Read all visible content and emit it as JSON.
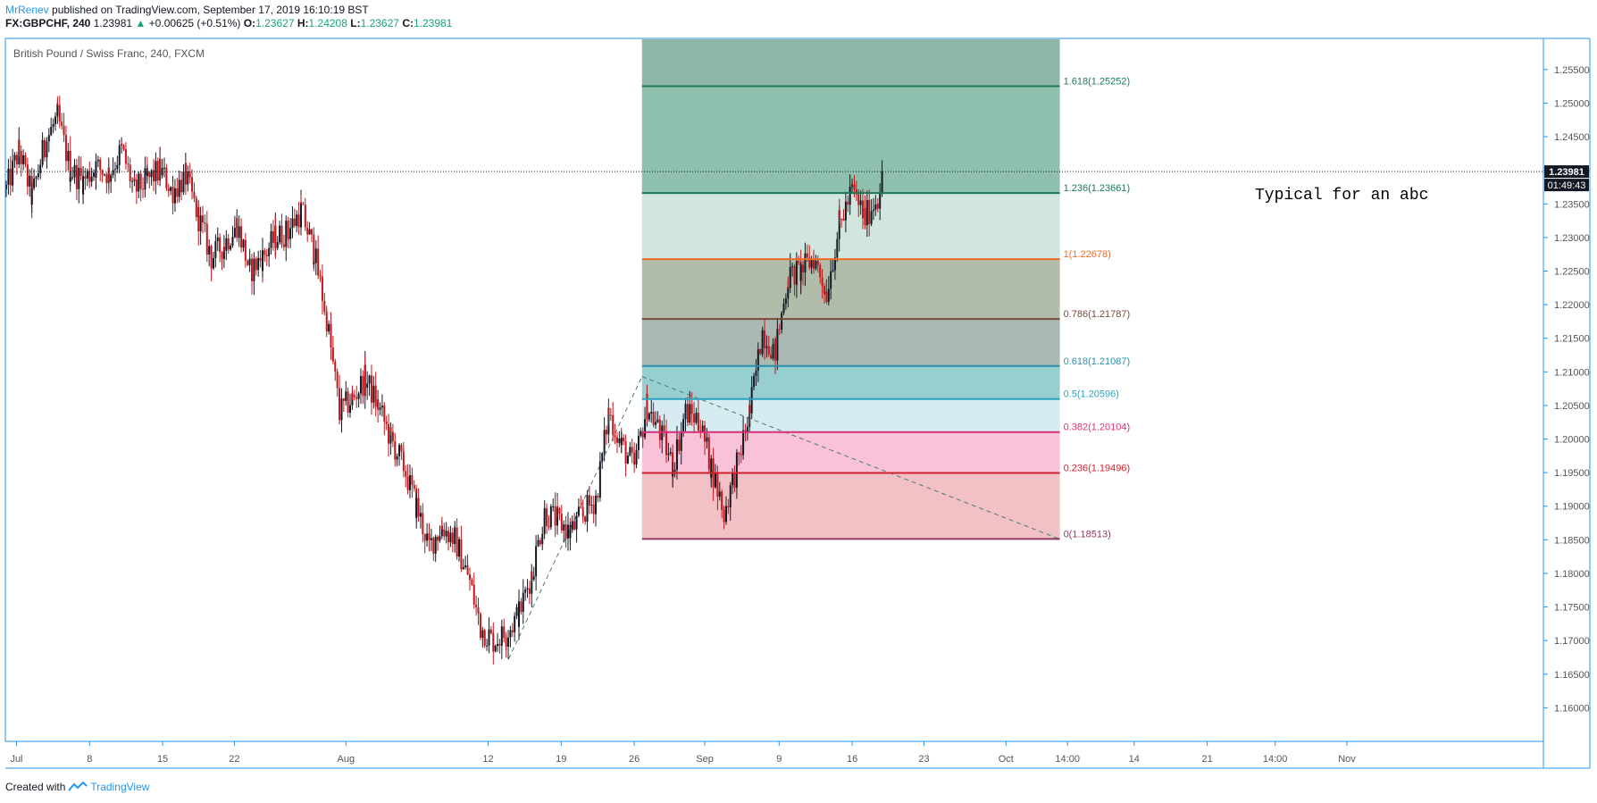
{
  "header": {
    "author": "MrRenev",
    "published": "published on TradingView.com, September 17, 2019 16:10:19 BST",
    "symbol": "FX:GBPCHF, 240",
    "last": "1.23981",
    "change_arrow": "▲",
    "change": "+0.00625 (+0.51%)",
    "o_label": "O:",
    "o_value": "1.23627",
    "h_label": "H:",
    "h_value": "1.24208",
    "l_label": "L:",
    "l_value": "1.23627",
    "c_label": "C:",
    "c_value": "1.23981"
  },
  "footer": {
    "created_with": "Created with",
    "brand": "TradingView"
  },
  "colors": {
    "up": "#131722",
    "down": "#c2161a",
    "axis": "#2196f3",
    "bg": "#ffffff"
  },
  "chart_data": {
    "type": "candlestick",
    "title": "British Pound / Swiss Franc, 240, FXCM",
    "annotation": "Typical for an abc",
    "y_range": [
      1.155,
      1.2595
    ],
    "y_ticks": [
      "1.16000",
      "1.16500",
      "1.17000",
      "1.17500",
      "1.18000",
      "1.18500",
      "1.19000",
      "1.19500",
      "1.20000",
      "1.20500",
      "1.21000",
      "1.21500",
      "1.22000",
      "1.22500",
      "1.23000",
      "1.23500",
      "1.24000",
      "1.24500",
      "1.25000",
      "1.25500"
    ],
    "x_ticks": [
      {
        "label": "Jul",
        "t": 0.8
      },
      {
        "label": "8",
        "t": 6.5
      },
      {
        "label": "15",
        "t": 12.2
      },
      {
        "label": "22",
        "t": 17.8
      },
      {
        "label": "Aug",
        "t": 26.5
      },
      {
        "label": "12",
        "t": 37.6
      },
      {
        "label": "19",
        "t": 43.3
      },
      {
        "label": "26",
        "t": 49.0
      },
      {
        "label": "Sep",
        "t": 54.5
      },
      {
        "label": "9",
        "t": 60.3
      },
      {
        "label": "16",
        "t": 66.0
      },
      {
        "label": "23",
        "t": 71.6
      },
      {
        "label": "Oct",
        "t": 78.0
      },
      {
        "label": "14:00",
        "t": 82.8
      },
      {
        "label": "14",
        "t": 88.0
      },
      {
        "label": "21",
        "t": 93.7
      },
      {
        "label": "14:00",
        "t": 99.0
      },
      {
        "label": "Nov",
        "t": 104.6
      }
    ],
    "price_line": {
      "value": 1.23981,
      "label": "1.23981",
      "countdown": "01:49:43"
    },
    "fib": {
      "t_start": 49.6,
      "t_end": 82.2,
      "levels": [
        {
          "ratio": "0",
          "price": 1.18513,
          "text": "0(1.18513)",
          "color": "#8e3b61",
          "fill": "#f2c1c6"
        },
        {
          "ratio": "0.236",
          "price": 1.19496,
          "text": "0.236(1.19496)",
          "color": "#d2222d",
          "fill": "#f9c2d8"
        },
        {
          "ratio": "0.382",
          "price": 1.20104,
          "text": "0.382(1.20104)",
          "color": "#d8307a",
          "fill": "#d7ecf1"
        },
        {
          "ratio": "0.5",
          "price": 1.20596,
          "text": "0.5(1.20596)",
          "color": "#29a3c2",
          "fill": "#97cfd0"
        },
        {
          "ratio": "0.618",
          "price": 1.21087,
          "text": "0.618(1.21087)",
          "color": "#2b8fab",
          "fill": "#a9b9b2"
        },
        {
          "ratio": "0.786",
          "price": 1.21787,
          "text": "0.786(1.21787)",
          "color": "#7a4a3c",
          "fill": "#b1bcab"
        },
        {
          "ratio": "1",
          "price": 1.22678,
          "text": "1(1.22678)",
          "color": "#ef6c27",
          "fill": "#d1e6de"
        },
        {
          "ratio": "1.236",
          "price": 1.23661,
          "text": "1.236(1.23661)",
          "color": "#1d7a55",
          "fill": "#8fbfad"
        },
        {
          "ratio": "1.618",
          "price": 1.25252,
          "text": "1.618(1.25252)",
          "color": "#1d7a55",
          "fill": "#8db6a6"
        }
      ],
      "top_price": 1.2595
    },
    "trendlines": [
      {
        "t1": 39.2,
        "p1": 1.1673,
        "t2": 49.6,
        "p2": 1.2093
      },
      {
        "t1": 49.6,
        "p1": 1.2093,
        "t2": 82.2,
        "p2": 1.1851
      }
    ],
    "anchors": [
      [
        0,
        1.2372
      ],
      [
        1,
        1.243
      ],
      [
        2,
        1.236
      ],
      [
        3,
        1.244
      ],
      [
        4,
        1.248
      ],
      [
        5,
        1.24
      ],
      [
        6,
        1.2385
      ],
      [
        7,
        1.2405
      ],
      [
        8,
        1.2395
      ],
      [
        9,
        1.243
      ],
      [
        10,
        1.237
      ],
      [
        11,
        1.2385
      ],
      [
        12,
        1.24
      ],
      [
        13,
        1.237
      ],
      [
        14,
        1.239
      ],
      [
        15,
        1.233
      ],
      [
        16,
        1.227
      ],
      [
        17,
        1.229
      ],
      [
        18,
        1.232
      ],
      [
        19,
        1.225
      ],
      [
        20,
        1.227
      ],
      [
        21,
        1.23
      ],
      [
        22,
        1.231
      ],
      [
        23,
        1.234
      ],
      [
        24,
        1.228
      ],
      [
        25,
        1.218
      ],
      [
        26,
        1.204
      ],
      [
        27,
        1.206
      ],
      [
        28,
        1.209
      ],
      [
        29,
        1.205
      ],
      [
        30,
        1.2
      ],
      [
        31,
        1.196
      ],
      [
        32,
        1.19
      ],
      [
        33,
        1.184
      ],
      [
        34,
        1.187
      ],
      [
        35,
        1.185
      ],
      [
        36,
        1.18
      ],
      [
        37,
        1.172
      ],
      [
        38,
        1.17
      ],
      [
        39,
        1.171
      ],
      [
        40,
        1.174
      ],
      [
        41,
        1.18
      ],
      [
        42,
        1.189
      ],
      [
        43,
        1.188
      ],
      [
        44,
        1.186
      ],
      [
        45,
        1.189
      ],
      [
        46,
        1.191
      ],
      [
        47,
        1.204
      ],
      [
        48,
        1.199
      ],
      [
        49,
        1.196
      ],
      [
        50,
        1.205
      ],
      [
        51,
        1.201
      ],
      [
        52,
        1.196
      ],
      [
        53,
        1.204
      ],
      [
        54,
        1.203
      ],
      [
        55,
        1.196
      ],
      [
        56,
        1.189
      ],
      [
        57,
        1.196
      ],
      [
        58,
        1.204
      ],
      [
        59,
        1.216
      ],
      [
        60,
        1.213
      ],
      [
        61,
        1.224
      ],
      [
        62,
        1.225
      ],
      [
        63,
        1.227
      ],
      [
        64,
        1.222
      ],
      [
        65,
        1.232
      ],
      [
        66,
        1.237
      ],
      [
        67,
        1.233
      ],
      [
        68,
        1.236
      ],
      [
        68.4,
        1.2398
      ]
    ]
  }
}
